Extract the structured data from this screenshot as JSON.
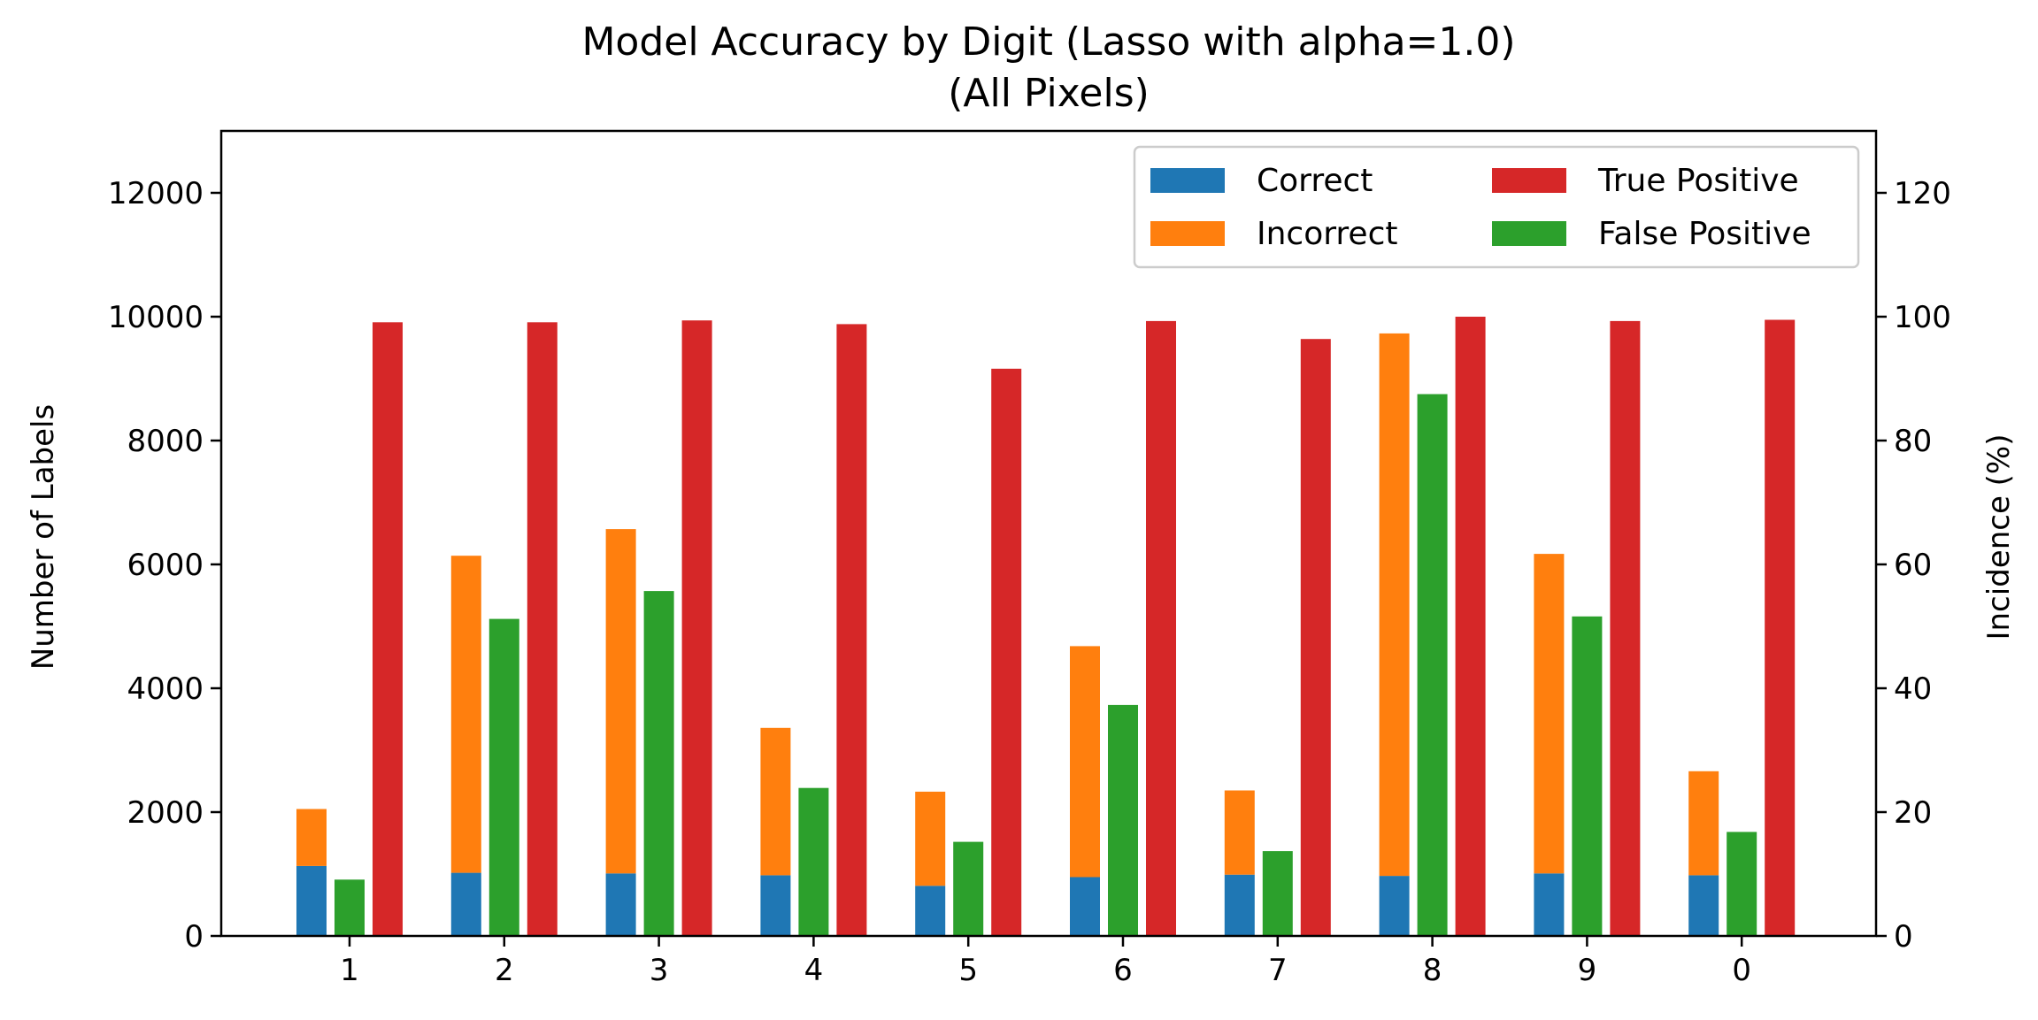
{
  "chart_data": {
    "type": "bar",
    "title": "Model Accuracy by Digit (Lasso with alpha=1.0)",
    "subtitle": "(All Pixels)",
    "ylabel": "Number of Labels",
    "y2label": "Incidence (%)",
    "xlabel": "",
    "categories": [
      "1",
      "2",
      "3",
      "4",
      "5",
      "6",
      "7",
      "8",
      "9",
      "0"
    ],
    "ylim": [
      0,
      13000
    ],
    "y2lim": [
      0,
      130
    ],
    "yticks": [
      "0",
      "2000",
      "4000",
      "6000",
      "8000",
      "10000",
      "12000"
    ],
    "y2ticks": [
      "0",
      "20",
      "40",
      "60",
      "80",
      "100",
      "120"
    ],
    "grid": false,
    "legend_position": "top-right",
    "series": [
      {
        "name": "Correct",
        "axis": "left",
        "stack": "a",
        "color": "#1f77b4",
        "values": [
          1130,
          1020,
          1010,
          980,
          810,
          950,
          990,
          970,
          1010,
          980
        ]
      },
      {
        "name": "Incorrect",
        "axis": "left",
        "stack": "a",
        "color": "#ff7f0e",
        "values": [
          920,
          5120,
          5560,
          2380,
          1520,
          3730,
          1360,
          8760,
          5160,
          1680
        ]
      },
      {
        "name": "True Positive",
        "axis": "right",
        "stack": "c",
        "color": "#d62728",
        "values": [
          99.1,
          99.1,
          99.4,
          98.8,
          91.6,
          99.3,
          96.4,
          100.0,
          99.3,
          99.5
        ]
      },
      {
        "name": "False Positive",
        "axis": "right",
        "stack": "b",
        "color": "#2ca02c",
        "values": [
          9.1,
          51.2,
          55.7,
          23.9,
          15.2,
          37.3,
          13.7,
          87.5,
          51.6,
          16.8
        ]
      }
    ]
  }
}
